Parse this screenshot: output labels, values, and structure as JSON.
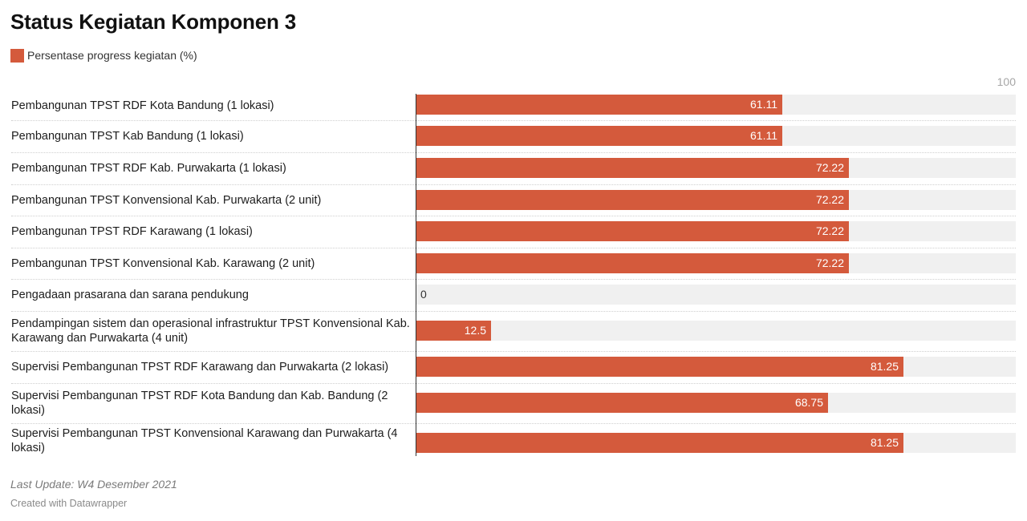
{
  "title": "Status Kegiatan Komponen 3",
  "legend": {
    "label": "Persentase progress kegiatan (%)",
    "color": "#d45a3c"
  },
  "axis": {
    "max_label": "100"
  },
  "colors": {
    "bar": "#d45a3c",
    "track": "#f0f0f0"
  },
  "chart_data": {
    "type": "bar",
    "orientation": "horizontal",
    "title": "Status Kegiatan Komponen 3",
    "xlim": [
      0,
      100
    ],
    "categories": [
      "Pembangunan TPST RDF Kota Bandung (1 lokasi)",
      "Pembangunan TPST Kab Bandung (1 lokasi)",
      "Pembangunan TPST RDF Kab. Purwakarta (1 lokasi)",
      "Pembangunan TPST Konvensional Kab. Purwakarta (2 unit)",
      "Pembangunan TPST RDF Karawang (1 lokasi)",
      "Pembangunan TPST Konvensional Kab. Karawang (2 unit)",
      "Pengadaan prasarana dan sarana pendukung",
      "Pendampingan sistem dan operasional infrastruktur TPST Konvensional Kab. Karawang dan Purwakarta (4 unit)",
      "Supervisi Pembangunan TPST RDF Karawang dan Purwakarta (2 lokasi)",
      "Supervisi Pembangunan TPST RDF Kota Bandung dan Kab. Bandung (2 lokasi)",
      "Supervisi Pembangunan TPST Konvensional Karawang dan Purwakarta (4 lokasi)"
    ],
    "series": [
      {
        "name": "Persentase progress kegiatan (%)",
        "values": [
          61.11,
          61.11,
          72.22,
          72.22,
          72.22,
          72.22,
          0,
          12.5,
          81.25,
          68.75,
          81.25
        ]
      }
    ],
    "value_labels": [
      "61.11",
      "61.11",
      "72.22",
      "72.22",
      "72.22",
      "72.22",
      "0",
      "12.5",
      "81.25",
      "68.75",
      "81.25"
    ],
    "legend_position": "top-left",
    "grid": false
  },
  "footer": {
    "note": "Last Update: W4 Desember 2021",
    "credit": "Created with Datawrapper"
  }
}
